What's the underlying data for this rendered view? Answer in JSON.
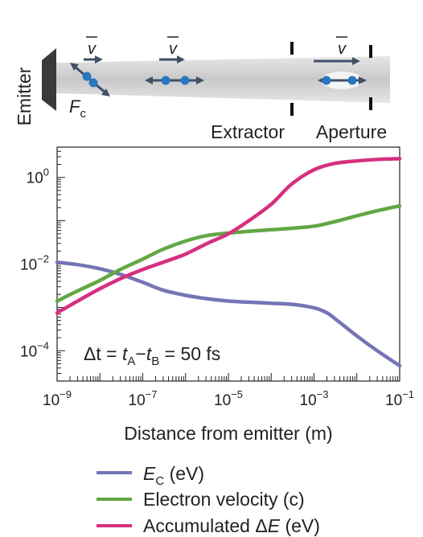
{
  "schematic": {
    "emitter_label": "Emitter",
    "force_label": "F",
    "force_sub": "c",
    "velocity_symbol": "v",
    "extractor_label": "Extractor",
    "aperture_label": "Aperture"
  },
  "annotation": {
    "dt": "Δt",
    "eq1": " = ",
    "tA": "t",
    "tA_sub": "A",
    "minus": "−",
    "tB": "t",
    "tB_sub": "B",
    "eq2": " = 50 fs"
  },
  "legend": {
    "ec_main": "E",
    "ec_sub": "C",
    "ec_unit": " (eV)",
    "vel": "Electron velocity (c)",
    "acc_prefix": "Accumulated Δ",
    "acc_E": "E",
    "acc_unit": " (eV)"
  },
  "chart_data": {
    "type": "line",
    "xlabel": "Distance from emitter (m)",
    "ylabel": "",
    "x_scale": "log",
    "y_scale": "log",
    "xlim": [
      1e-09,
      0.1
    ],
    "ylim": [
      2e-05,
      5
    ],
    "xticks": [
      {
        "value": 1e-09,
        "base": "10",
        "exp": "−9"
      },
      {
        "value": 1e-07,
        "base": "10",
        "exp": "−7"
      },
      {
        "value": 1e-05,
        "base": "10",
        "exp": "−5"
      },
      {
        "value": 0.001,
        "base": "10",
        "exp": "−3"
      },
      {
        "value": 0.1,
        "base": "10",
        "exp": "−1"
      }
    ],
    "yticks": [
      {
        "value": 1,
        "base": "10",
        "exp": "0"
      },
      {
        "value": 0.01,
        "base": "10",
        "exp": "−2"
      },
      {
        "value": 0.0001,
        "base": "10",
        "exp": "−4"
      }
    ],
    "series": [
      {
        "name": "E_C (eV)",
        "color": "#7474b6",
        "x": [
          1e-09,
          3e-09,
          1e-08,
          3e-08,
          1e-07,
          3e-07,
          1e-06,
          3e-06,
          1e-05,
          3e-05,
          0.0001,
          0.0003,
          0.001,
          0.002,
          0.004,
          0.01,
          0.03,
          0.1
        ],
        "y": [
          0.011,
          0.0097,
          0.0078,
          0.0058,
          0.0038,
          0.0025,
          0.0019,
          0.0016,
          0.0014,
          0.00132,
          0.00125,
          0.00118,
          0.00098,
          0.00075,
          0.00045,
          0.00022,
          0.0001,
          4.5e-05
        ]
      },
      {
        "name": "Electron velocity (c)",
        "color": "#62a744",
        "x": [
          1e-09,
          3e-09,
          1e-08,
          3e-08,
          1e-07,
          3e-07,
          1e-06,
          3e-06,
          1e-05,
          3e-05,
          0.0001,
          0.0003,
          0.001,
          0.003,
          0.01,
          0.03,
          0.1
        ],
        "y": [
          0.0014,
          0.0024,
          0.0042,
          0.0075,
          0.013,
          0.022,
          0.034,
          0.045,
          0.052,
          0.057,
          0.062,
          0.067,
          0.075,
          0.095,
          0.13,
          0.17,
          0.22
        ]
      },
      {
        "name": "Accumulated ΔE (eV)",
        "color": "#d6307e",
        "x": [
          1e-09,
          3e-09,
          1e-08,
          3e-08,
          1e-07,
          3e-07,
          1e-06,
          3e-06,
          1e-05,
          3e-05,
          0.0001,
          0.0003,
          0.001,
          0.003,
          0.01,
          0.03,
          0.1
        ],
        "y": [
          0.00075,
          0.0014,
          0.0027,
          0.0046,
          0.0075,
          0.011,
          0.017,
          0.029,
          0.05,
          0.1,
          0.24,
          0.7,
          1.5,
          2.1,
          2.4,
          2.6,
          2.7
        ]
      }
    ]
  }
}
